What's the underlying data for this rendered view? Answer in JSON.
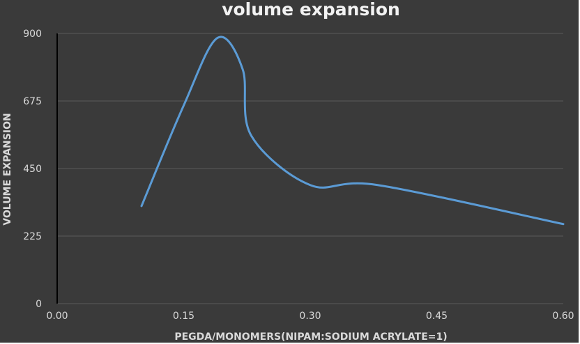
{
  "chart_data": {
    "type": "line",
    "title": "volume expansion",
    "xlabel": "PEGDA/MONOMERS(NIPAM:SODIUM ACRYLATE=1)",
    "ylabel": "VOLUME EXPANSION",
    "xlim": [
      0,
      0.6
    ],
    "ylim": [
      0,
      900
    ],
    "x_ticks": [
      "0.00",
      "0.15",
      "0.30",
      "0.45",
      "0.60"
    ],
    "y_ticks": [
      "0",
      "225",
      "450",
      "675",
      "900"
    ],
    "grid": "horizontal",
    "smooth": true,
    "series": [
      {
        "color": "#5b9bd5",
        "x": [
          0.1,
          0.15,
          0.19,
          0.22,
          0.23,
          0.3,
          0.38,
          0.6
        ],
        "y": [
          325,
          660,
          885,
          780,
          560,
          395,
          395,
          265
        ]
      }
    ]
  }
}
